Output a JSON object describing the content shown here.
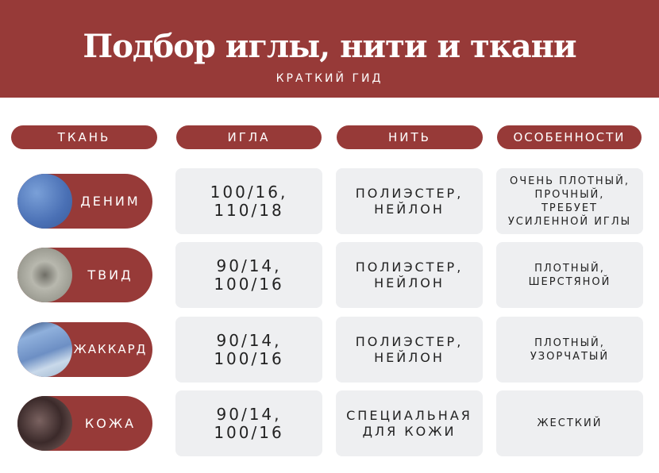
{
  "header": {
    "title": "Подбор иглы, нити и ткани",
    "subtitle": "КРАТКИЙ ГИД",
    "background": "#973a38"
  },
  "columns": [
    "ТКАНЬ",
    "ИГЛА",
    "НИТЬ",
    "ОСОБЕННОСТИ"
  ],
  "rows": [
    {
      "fabric": "ДЕНИМ",
      "swatch_icon": "denim-swatch",
      "needle": "100/16,\n110/18",
      "thread": "ПОЛИЭСТЕР,\nНЕЙЛОН",
      "features": "ОЧЕНЬ ПЛОТНЫЙ,\nПРОЧНЫЙ,\nТРЕБУЕТ\nУСИЛЕННОЙ ИГЛЫ"
    },
    {
      "fabric": "ТВИД",
      "swatch_icon": "tweed-swatch",
      "needle": "90/14,\n100/16",
      "thread": "ПОЛИЭСТЕР,\nНЕЙЛОН",
      "features": "ПЛОТНЫЙ,\nШЕРСТЯНОЙ"
    },
    {
      "fabric": "ЖАККАРД",
      "swatch_icon": "jacquard-swatch",
      "needle": "90/14,\n100/16",
      "thread": "ПОЛИЭСТЕР,\nНЕЙЛОН",
      "features": "ПЛОТНЫЙ,\nУЗОРЧАТЫЙ"
    },
    {
      "fabric": "КОЖА",
      "swatch_icon": "leather-swatch",
      "needle": "90/14,\n100/16",
      "thread": "СПЕЦИАЛЬНАЯ\nДЛЯ КОЖИ",
      "features": "ЖЕСТКИЙ"
    }
  ]
}
